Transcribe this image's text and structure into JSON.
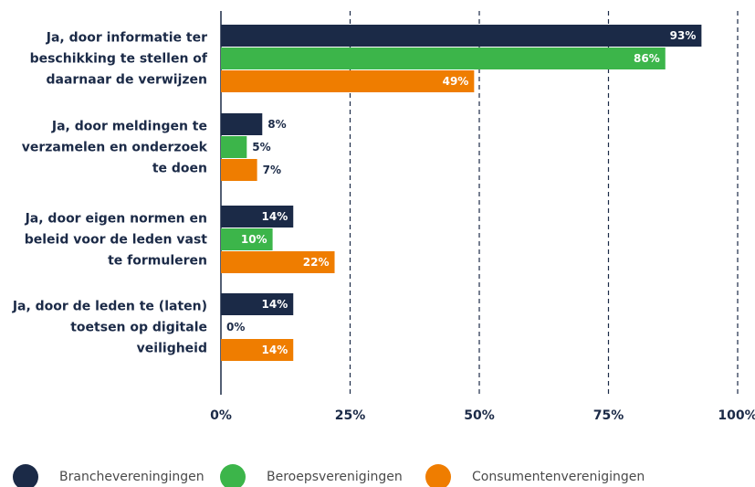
{
  "chart_data": {
    "type": "hbar",
    "categories": [
      "Ja, door informatie ter beschikking te stellen of daarnaar de verwijzen",
      "Ja, door meldingen te verzamelen en onderzoek te doen",
      "Ja, door eigen normen en beleid voor de leden vast te formuleren",
      "Ja, door de leden te (laten) toetsen op digitale veiligheid"
    ],
    "series": [
      {
        "name": "Branchevereningingen",
        "color": "#1b2a47",
        "values": [
          93,
          8,
          14,
          14
        ],
        "value_labels": [
          "93%",
          "8%",
          "14%",
          "14%"
        ]
      },
      {
        "name": "Beroepsverenigingen",
        "color": "#3cb54a",
        "values": [
          86,
          5,
          10,
          0
        ],
        "value_labels": [
          "86%",
          "5%",
          "10%",
          "0%"
        ]
      },
      {
        "name": "Consumentenverenigingen",
        "color": "#ef7d00",
        "values": [
          49,
          7,
          22,
          14
        ],
        "value_labels": [
          "49%",
          "7%",
          "22%",
          "14%"
        ]
      }
    ],
    "xlim": [
      0,
      100
    ],
    "xticks": [
      {
        "value": 0,
        "label": "0%"
      },
      {
        "value": 25,
        "label": "25%"
      },
      {
        "value": 50,
        "label": "50%"
      },
      {
        "value": 75,
        "label": "75%"
      },
      {
        "value": 100,
        "label": "100%"
      }
    ],
    "grid": true,
    "legend": "bottom"
  }
}
